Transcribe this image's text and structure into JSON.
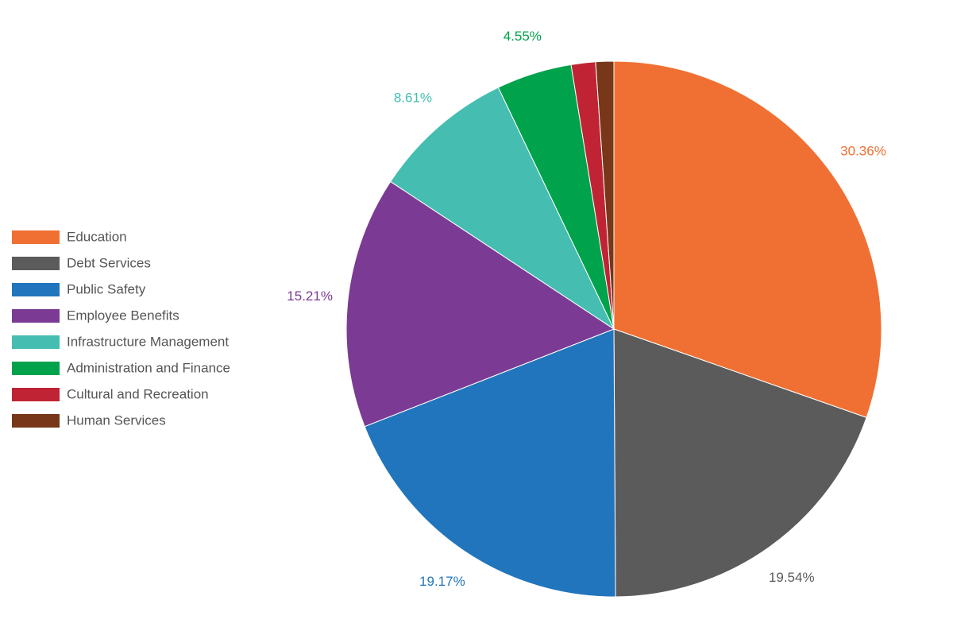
{
  "chart_data": {
    "type": "pie",
    "title": "",
    "legend_position": "left",
    "slices": [
      {
        "name": "Education",
        "value": 30.36,
        "label": "30.36%",
        "color": "#f07033"
      },
      {
        "name": "Debt Services",
        "value": 19.54,
        "label": "19.54%",
        "color": "#5b5b5b"
      },
      {
        "name": "Public Safety",
        "value": 19.17,
        "label": "19.17%",
        "color": "#2175bc"
      },
      {
        "name": "Employee Benefits",
        "value": 15.21,
        "label": "15.21%",
        "color": "#7b3b94"
      },
      {
        "name": "Infrastructure Management",
        "value": 8.61,
        "label": "8.61%",
        "color": "#45beb1"
      },
      {
        "name": "Administration and Finance",
        "value": 4.55,
        "label": "4.55%",
        "color": "#00a24b"
      },
      {
        "name": "Cultural and Recreation",
        "value": 1.47,
        "label": "",
        "color": "#c02434"
      },
      {
        "name": "Human Services",
        "value": 1.09,
        "label": "",
        "color": "#773718"
      }
    ]
  }
}
